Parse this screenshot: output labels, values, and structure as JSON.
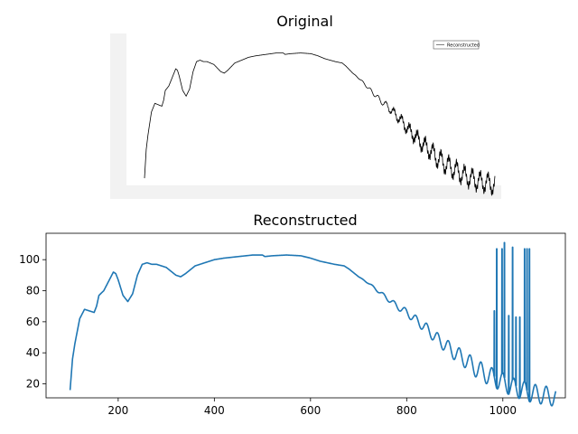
{
  "figure": {
    "top_title": "Original",
    "bottom_title": "Reconstructed",
    "legend_label": "Reconstructed"
  },
  "chart_data": [
    {
      "type": "line",
      "title": "Original",
      "description_kind": "embedded-image",
      "background_color": "#f2f2f2",
      "line_color": "#000000",
      "legend": {
        "placement": "top-right",
        "entries": [
          "Reconstructed"
        ]
      }
    },
    {
      "type": "line",
      "title": "Reconstructed",
      "xlabel": "",
      "ylabel": "",
      "xlim": [
        50,
        1130
      ],
      "ylim": [
        11,
        117
      ],
      "x_ticks": [
        200,
        400,
        600,
        800,
        1000
      ],
      "y_ticks": [
        20,
        40,
        60,
        80,
        100
      ],
      "grid": false,
      "line_color": "#1f77b4",
      "series": [
        {
          "x": [
            100,
            105,
            110,
            120,
            130,
            140,
            150,
            155,
            160,
            170,
            180,
            190,
            195,
            200,
            210,
            220,
            230,
            240,
            250,
            260,
            270,
            280,
            300,
            320,
            330,
            340,
            360,
            380,
            400,
            420,
            450,
            480,
            500,
            505,
            520,
            550,
            580,
            600,
            620,
            650,
            670,
            680,
            700,
            720,
            740,
            760,
            780,
            800,
            820,
            840,
            860,
            880,
            900,
            920,
            940,
            960,
            980,
            1000,
            1020,
            1040,
            1060,
            1080,
            1100,
            1110
          ],
          "y": [
            16,
            36,
            46,
            62,
            68,
            67,
            66,
            70,
            77,
            80,
            86,
            92,
            91,
            87,
            77,
            73,
            78,
            90,
            97,
            98,
            97,
            97,
            95,
            90,
            89,
            91,
            96,
            98,
            100,
            101,
            102,
            103,
            103,
            102,
            102.5,
            103,
            102.5,
            101,
            99,
            97,
            96,
            94,
            89,
            85,
            80,
            75,
            70,
            66,
            61,
            56,
            50,
            45,
            40,
            36,
            31,
            27,
            24,
            21,
            18,
            16,
            14,
            13,
            12,
            11
          ]
        }
      ],
      "spikes": [
        {
          "x": 982,
          "y": 67
        },
        {
          "x": 987,
          "y": 107
        },
        {
          "x": 998,
          "y": 107
        },
        {
          "x": 1003,
          "y": 111
        },
        {
          "x": 1012,
          "y": 64
        },
        {
          "x": 1020,
          "y": 108
        },
        {
          "x": 1027,
          "y": 63
        },
        {
          "x": 1035,
          "y": 63
        },
        {
          "x": 1045,
          "y": 107
        },
        {
          "x": 1050,
          "y": 107
        },
        {
          "x": 1055,
          "y": 107
        }
      ],
      "oscillation": {
        "start_x": 700,
        "amplitude_max": 6
      }
    }
  ]
}
